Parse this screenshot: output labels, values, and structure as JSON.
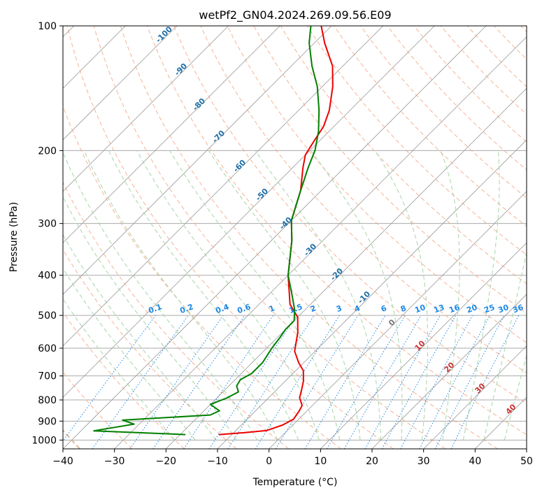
{
  "chart_data": {
    "type": "line",
    "title": "wetPf2_GN04.2024.269.09.56.E09",
    "xlabel": "Temperature (°C)",
    "ylabel": "Pressure (hPa)",
    "xlim": [
      -40,
      50
    ],
    "ylim": [
      1050,
      100
    ],
    "y_scale": "log",
    "grid": true,
    "x_ticks": [
      -40,
      -30,
      -20,
      -10,
      0,
      10,
      20,
      30,
      40,
      50
    ],
    "y_ticks": [
      1000,
      900,
      800,
      700,
      600,
      500,
      400,
      300,
      200,
      100
    ],
    "skew": "45-degree isotherms",
    "series": [
      {
        "kind": "temperature",
        "color": "#ee0000",
        "points": [
          [
            -12.5,
            970
          ],
          [
            -8,
            960
          ],
          [
            -4,
            948
          ],
          [
            -2,
            920
          ],
          [
            -1,
            890
          ],
          [
            -1.5,
            850
          ],
          [
            -2,
            825
          ],
          [
            -4,
            790
          ],
          [
            -5,
            760
          ],
          [
            -6.5,
            720
          ],
          [
            -8.5,
            680
          ],
          [
            -11,
            650
          ],
          [
            -14,
            610
          ],
          [
            -17,
            550
          ],
          [
            -20,
            505
          ],
          [
            -24,
            470
          ],
          [
            -30,
            400
          ],
          [
            -36,
            330
          ],
          [
            -40,
            295
          ],
          [
            -44,
            250
          ],
          [
            -48,
            220
          ],
          [
            -50,
            205
          ],
          [
            -51,
            190
          ],
          [
            -52,
            175
          ],
          [
            -54,
            160
          ],
          [
            -58,
            140
          ],
          [
            -62,
            125
          ],
          [
            -68,
            110
          ],
          [
            -72,
            100
          ]
        ]
      },
      {
        "kind": "dewpoint",
        "color": "#008000",
        "points": [
          [
            -19,
            970
          ],
          [
            -37.5,
            950
          ],
          [
            -31,
            915
          ],
          [
            -34,
            895
          ],
          [
            -18,
            870
          ],
          [
            -17,
            850
          ],
          [
            -20,
            820
          ],
          [
            -18,
            790
          ],
          [
            -17,
            765
          ],
          [
            -18.5,
            740
          ],
          [
            -19,
            715
          ],
          [
            -18,
            690
          ],
          [
            -18,
            650
          ],
          [
            -19,
            600
          ],
          [
            -19.5,
            565
          ],
          [
            -20,
            540
          ],
          [
            -20,
            515
          ],
          [
            -22,
            485
          ],
          [
            -26,
            440
          ],
          [
            -30,
            400
          ],
          [
            -36,
            330
          ],
          [
            -40,
            295
          ],
          [
            -44,
            250
          ],
          [
            -47,
            220
          ],
          [
            -49,
            200
          ],
          [
            -52,
            180
          ],
          [
            -56,
            160
          ],
          [
            -61,
            140
          ],
          [
            -66,
            125
          ],
          [
            -71,
            110
          ],
          [
            -74,
            100
          ]
        ]
      }
    ],
    "dry_adiabat_labels": [
      "-100",
      "-90",
      "-80",
      "-70",
      "-60",
      "-50",
      "-40",
      "-30",
      "-20",
      "-10"
    ],
    "moist_adiabat_labels": [
      "0",
      "10",
      "20",
      "30",
      "40"
    ],
    "mixing_ratio_labels": [
      "0.1",
      "0.2",
      "0.4",
      "0.6",
      "1",
      "1.5",
      "2",
      "3",
      "4",
      "6",
      "8",
      "10",
      "13",
      "16",
      "20",
      "25",
      "30",
      "36"
    ],
    "colors": {
      "temperature": "#ee0000",
      "dewpoint": "#008000",
      "dry_adiabat": "#f4a582",
      "moist_adiabat": "#a6d4a6",
      "mixing_ratio": "#1e88e5",
      "isotherm": "#999999",
      "isobar": "#aaaaaa"
    }
  }
}
